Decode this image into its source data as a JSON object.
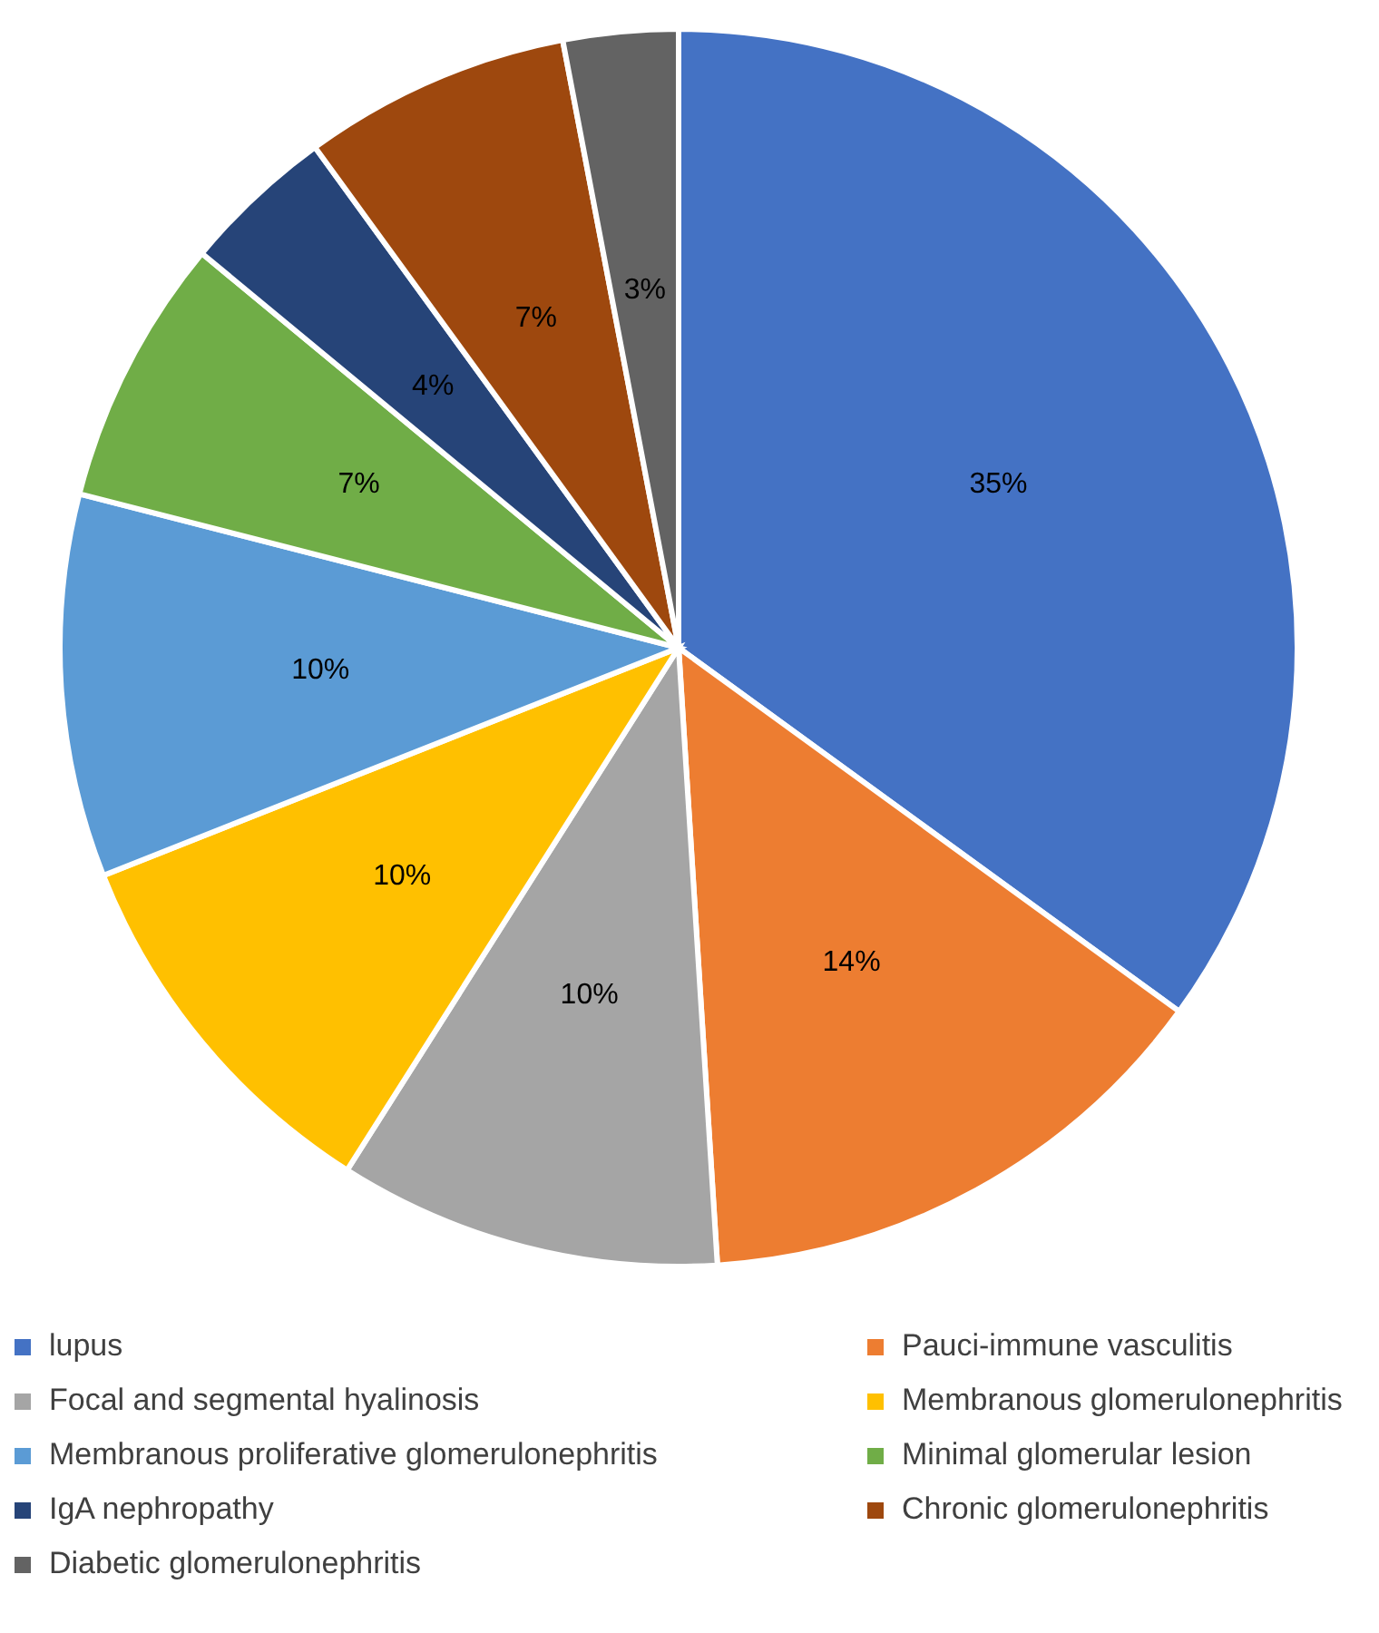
{
  "chart_data": {
    "type": "pie",
    "categories": [
      "lupus",
      "Pauci-immune vasculitis",
      "Focal and segmental hyalinosis",
      "Membranous glomerulonephritis",
      "Membranous proliferative glomerulonephritis",
      "Minimal glomerular lesion",
      "IgA nephropathy",
      "Chronic glomerulonephritis",
      "Diabetic glomerulonephritis"
    ],
    "values": [
      35,
      14,
      10,
      10,
      10,
      7,
      4,
      7,
      3
    ],
    "value_labels": [
      "35%",
      "14%",
      "10%",
      "10%",
      "10%",
      "7%",
      "4%",
      "7%",
      "3%"
    ],
    "colors": [
      "#4472c4",
      "#ed7d31",
      "#a5a5a5",
      "#ffc000",
      "#5b9bd5",
      "#70ad47",
      "#264478",
      "#9e480e",
      "#636363"
    ],
    "legend": "bottom"
  }
}
